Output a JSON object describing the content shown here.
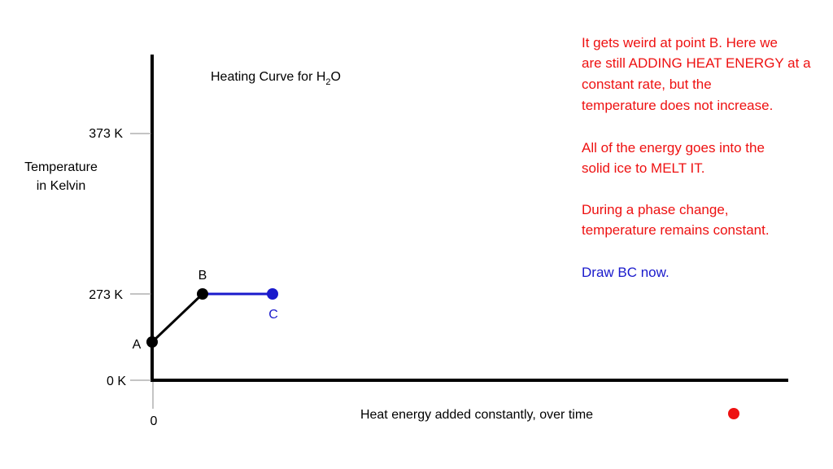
{
  "slide": {
    "title": {
      "text": "Heating Curve for H",
      "subscript": "2",
      "suffix": "O"
    },
    "y_axis": {
      "label_lines": [
        "Temperature",
        "in Kelvin"
      ],
      "ticks": [
        "373 K",
        "273 K",
        "0 K"
      ]
    },
    "x_axis": {
      "label": "Heat energy added constantly, over time",
      "ticks": [
        "0"
      ]
    },
    "points": [
      {
        "label": "A"
      },
      {
        "label": "B"
      },
      {
        "label": "C"
      }
    ],
    "notes": [
      {
        "lines": [
          "It gets weird at point B.  Here we",
          "are still ADDING HEAT ENERGY at a",
          "constant rate, but the",
          "temperature does not increase."
        ]
      },
      {
        "lines": [
          "All of the energy goes into the",
          "solid ice to MELT IT."
        ]
      },
      {
        "lines": [
          "During a phase change,",
          "temperature remains constant."
        ]
      },
      {
        "lines": [
          "Draw BC now."
        ]
      }
    ]
  }
}
